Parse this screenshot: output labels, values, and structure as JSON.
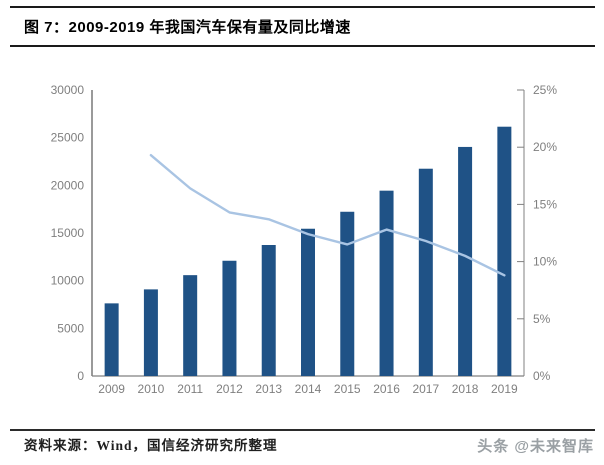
{
  "header": {
    "title": "图 7：2009-2019 年我国汽车保有量及同比增速"
  },
  "footer": {
    "source": "资料来源：Wind，国信经济研究所整理",
    "watermark": "头条 @未来智库"
  },
  "colors": {
    "bar": "#1F5286",
    "line": "#A9C4E3",
    "axis": "#808080",
    "tick_label": "#7F7F7F",
    "rule": "#1a1a1a"
  },
  "chart_data": {
    "type": "combo",
    "title": "2009-2019 年我国汽车保有量及同比增速",
    "categories": [
      "2009",
      "2010",
      "2011",
      "2012",
      "2013",
      "2014",
      "2015",
      "2016",
      "2017",
      "2018",
      "2019"
    ],
    "series": [
      {
        "name": "汽车保有量",
        "chart_type": "bar",
        "y_axis": "left",
        "color": "#1F5286",
        "values": [
          7619,
          9086,
          10578,
          12089,
          13741,
          15447,
          17228,
          19440,
          21743,
          24028,
          26150
        ]
      },
      {
        "name": "同比增速",
        "chart_type": "line",
        "y_axis": "right",
        "color": "#A9C4E3",
        "values": [
          null,
          19.3,
          16.4,
          14.3,
          13.7,
          12.4,
          11.5,
          12.8,
          11.8,
          10.5,
          8.8
        ]
      }
    ],
    "left_axis": {
      "min": 0,
      "max": 30000,
      "step": 5000,
      "ticks": [
        "0",
        "5000",
        "10000",
        "15000",
        "20000",
        "25000",
        "30000"
      ]
    },
    "right_axis": {
      "min": 0,
      "max": 25,
      "step": 5,
      "ticks": [
        "0%",
        "5%",
        "10%",
        "15%",
        "20%",
        "25%"
      ]
    },
    "grid": false,
    "legend": "none",
    "xlabel": "",
    "ylabel": ""
  }
}
